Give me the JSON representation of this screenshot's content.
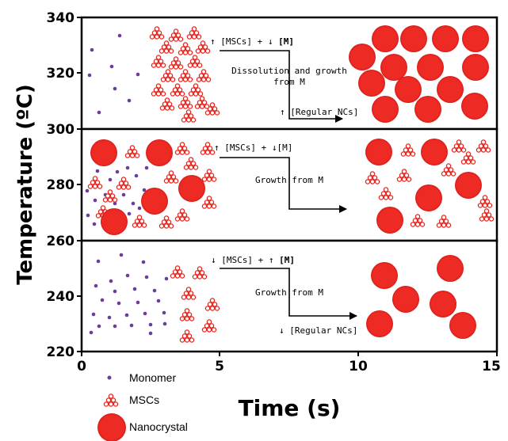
{
  "axes": {
    "y_title": "Temperature (ºC)",
    "x_title": "Time (s)",
    "y_ticks": [
      "340",
      "320",
      "300",
      "280",
      "260",
      "240",
      "220"
    ],
    "x_ticks": [
      "0",
      "5",
      "10",
      "15"
    ]
  },
  "panels": [
    {
      "label_line1_prefix": "↑ [MSCs] + ↓ ",
      "label_line1_bold": "[M]",
      "mechanism_line1": "Dissolution and growth",
      "mechanism_line2": "from M",
      "outcome": "↑ [Regular NCs]"
    },
    {
      "label_line1_prefix": "↑ [MSCs] + ↓[M]",
      "label_line1_bold": "",
      "mechanism_line1": "Growth from M",
      "mechanism_line2": "",
      "outcome": ""
    },
    {
      "label_line1_prefix": "↓ [MSCs] + ↑ ",
      "label_line1_bold": "[M]",
      "mechanism_line1": "Growth from M",
      "mechanism_line2": "",
      "outcome": "↓ [Regular NCs]"
    }
  ],
  "legend": {
    "monomer": "Monomer",
    "mscs": "MSCs",
    "nanocrystal": "Nanocrystal"
  },
  "colors": {
    "nanocrystal_fill": "#ee2a24",
    "msc_stroke": "#e8231c",
    "monomer": "#6a3d9a"
  }
}
